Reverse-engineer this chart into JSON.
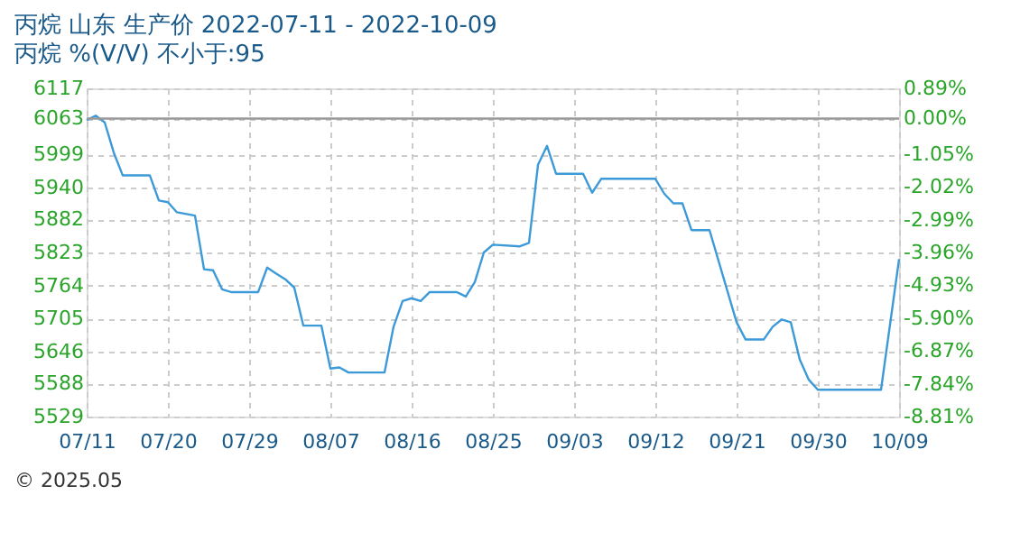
{
  "chart_data": {
    "type": "line",
    "title": "丙烷 山东 生产价 2022-07-11 - 2022-10-09",
    "subtitle": "丙烷 %(V/V)  不小于:95",
    "x": [
      "2022-07-11",
      "2022-07-12",
      "2022-07-13",
      "2022-07-14",
      "2022-07-15",
      "2022-07-18",
      "2022-07-19",
      "2022-07-20",
      "2022-07-21",
      "2022-07-23",
      "2022-07-24",
      "2022-07-25",
      "2022-07-26",
      "2022-07-27",
      "2022-07-30",
      "2022-07-31",
      "2022-08-01",
      "2022-08-02",
      "2022-08-03",
      "2022-08-04",
      "2022-08-06",
      "2022-08-07",
      "2022-08-08",
      "2022-08-09",
      "2022-08-13",
      "2022-08-14",
      "2022-08-15",
      "2022-08-16",
      "2022-08-17",
      "2022-08-18",
      "2022-08-21",
      "2022-08-22",
      "2022-08-23",
      "2022-08-24",
      "2022-08-25",
      "2022-08-28",
      "2022-08-29",
      "2022-08-30",
      "2022-08-31",
      "2022-09-01",
      "2022-09-04",
      "2022-09-05",
      "2022-09-06",
      "2022-09-12",
      "2022-09-13",
      "2022-09-14",
      "2022-09-15",
      "2022-09-16",
      "2022-09-18",
      "2022-09-21",
      "2022-09-22",
      "2022-09-24",
      "2022-09-25",
      "2022-09-26",
      "2022-09-27",
      "2022-09-28",
      "2022-09-29",
      "2022-09-30",
      "2022-10-07",
      "2022-10-09"
    ],
    "series": [
      {
        "color": "#3d9ad8",
        "values": [
          6060,
          6068,
          6056,
          6002,
          5961,
          5961,
          5916,
          5913,
          5895,
          5889,
          5793,
          5791,
          5757,
          5752,
          5752,
          5796,
          5785,
          5775,
          5760,
          5692,
          5692,
          5615,
          5617,
          5608,
          5608,
          5690,
          5736,
          5741,
          5736,
          5752,
          5752,
          5744,
          5770,
          5823,
          5837,
          5834,
          5840,
          5980,
          6014,
          5964,
          5964,
          5930,
          5955,
          5955,
          5928,
          5911,
          5911,
          5863,
          5863,
          5698,
          5667,
          5667,
          5690,
          5703,
          5698,
          5631,
          5595,
          5577,
          5577,
          5811
        ]
      }
    ],
    "xlim": [
      "2022-07-11",
      "2022-10-09"
    ],
    "xticks": [
      {
        "value": "2022-07-11",
        "label": "07/11"
      },
      {
        "value": "2022-07-20",
        "label": "07/20"
      },
      {
        "value": "2022-07-29",
        "label": "07/29"
      },
      {
        "value": "2022-08-07",
        "label": "08/07"
      },
      {
        "value": "2022-08-16",
        "label": "08/16"
      },
      {
        "value": "2022-08-25",
        "label": "08/25"
      },
      {
        "value": "2022-09-03",
        "label": "09/03"
      },
      {
        "value": "2022-09-12",
        "label": "09/12"
      },
      {
        "value": "2022-09-21",
        "label": "09/21"
      },
      {
        "value": "2022-09-30",
        "label": "09/30"
      },
      {
        "value": "2022-10-09",
        "label": "10/09"
      }
    ],
    "ylim": [
      5529,
      6117
    ],
    "yticks": [
      5529,
      5588,
      5646,
      5705,
      5764,
      5823,
      5882,
      5940,
      5999,
      6063,
      6117
    ],
    "y2lim": [
      -8.81,
      0.89
    ],
    "y2ticks": [
      {
        "value": -8.81,
        "label": "-8.81%"
      },
      {
        "value": -7.84,
        "label": "-7.84%"
      },
      {
        "value": -6.87,
        "label": "-6.87%"
      },
      {
        "value": -5.9,
        "label": "-5.90%"
      },
      {
        "value": -4.93,
        "label": "-4.93%"
      },
      {
        "value": -3.96,
        "label": "-3.96%"
      },
      {
        "value": -2.99,
        "label": "-2.99%"
      },
      {
        "value": -2.02,
        "label": "-2.02%"
      },
      {
        "value": -1.05,
        "label": "-1.05%"
      },
      {
        "value": 0,
        "label": "0.00%"
      },
      {
        "value": 0.89,
        "label": "0.89%"
      }
    ],
    "ref_lines": [
      {
        "axis": "y",
        "value": 6063,
        "color": "#999999",
        "line_style": "solid"
      }
    ],
    "grid": true,
    "line_style": "solid",
    "marker": "none",
    "annotations": [
      "© 2025.05"
    ]
  }
}
